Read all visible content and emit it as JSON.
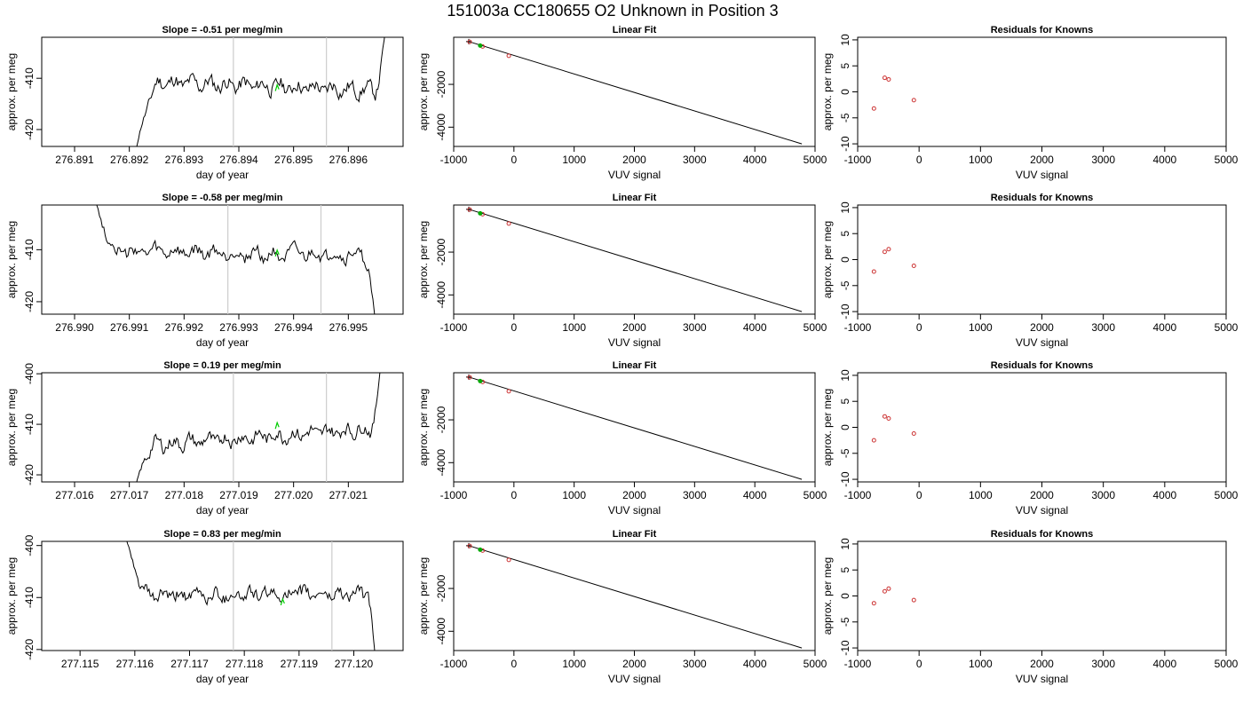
{
  "figure": {
    "title": "151003a     CC180655   O2 Unknown in Position  3"
  },
  "chart_data": [
    {
      "row": 0,
      "type": "line",
      "title": "Slope =  -0.51  per meg/min",
      "xlabel": "day of year",
      "ylabel": "approx. per meg",
      "xlim": [
        276.8904,
        276.897
      ],
      "ylim": [
        -423.3,
        -402.0
      ],
      "xticks": [
        276.891,
        276.892,
        276.893,
        276.894,
        276.895,
        276.896
      ],
      "yticks": [
        -410,
        -420
      ],
      "vlines": [
        276.8939,
        276.8956
      ],
      "trace": {
        "t0": 276.8921,
        "t1": 276.8967,
        "base": -411.5,
        "drift": -0.9,
        "noise": 2.2,
        "seed": 11,
        "start": {
          "len": 0.1,
          "from": -425
        },
        "end": {
          "len": 0.045,
          "to": -398
        }
      },
      "highlight": {
        "x": 276.8947,
        "y": -411.8
      }
    },
    {
      "row": 1,
      "type": "line",
      "title": "Slope =  -0.58  per meg/min",
      "xlabel": "day of year",
      "ylabel": "approx. per meg",
      "xlim": [
        276.9894,
        276.996
      ],
      "ylim": [
        -422.4,
        -401.4
      ],
      "xticks": [
        276.99,
        276.991,
        276.992,
        276.993,
        276.994,
        276.995
      ],
      "yticks": [
        -410,
        -420
      ],
      "vlines": [
        276.9928,
        276.9945
      ],
      "trace": {
        "t0": 276.9903,
        "t1": 276.9955,
        "base": -410.8,
        "drift": -0.4,
        "noise": 2.1,
        "seed": 27,
        "start": {
          "len": 0.1,
          "from": -398
        },
        "end": {
          "len": 0.04,
          "to": -425
        }
      },
      "highlight": {
        "x": 276.9937,
        "y": -410.6
      }
    },
    {
      "row": 2,
      "type": "line",
      "title": "Slope =  0.19  per meg/min",
      "xlabel": "day of year",
      "ylabel": "approx. per meg",
      "xlim": [
        277.0154,
        277.022
      ],
      "ylim": [
        -421.4,
        -399.8
      ],
      "xticks": [
        277.016,
        277.017,
        277.018,
        277.019,
        277.02,
        277.021
      ],
      "yticks": [
        -400,
        -410,
        -420
      ],
      "vlines": [
        277.0189,
        277.0206
      ],
      "trace": {
        "t0": 277.0171,
        "t1": 277.0216,
        "base": -412.5,
        "drift": 1.8,
        "noise": 2.1,
        "seed": 43,
        "start": {
          "len": 0.08,
          "from": -423
        },
        "end": {
          "len": 0.04,
          "to": -397
        }
      },
      "highlight": {
        "x": 277.0197,
        "y": -410.2
      }
    },
    {
      "row": 3,
      "type": "line",
      "title": "Slope =  0.83  per meg/min",
      "xlabel": "day of year",
      "ylabel": "approx. per meg",
      "xlim": [
        277.1143,
        277.1209
      ],
      "ylim": [
        -420.2,
        -399.2
      ],
      "xticks": [
        277.115,
        277.116,
        277.117,
        277.118,
        277.119,
        277.12
      ],
      "yticks": [
        -400,
        -410,
        -420
      ],
      "vlines": [
        277.1178,
        277.1196
      ],
      "trace": {
        "t0": 277.1158,
        "t1": 277.1204,
        "base": -409.5,
        "drift": 0.3,
        "noise": 2.0,
        "seed": 61,
        "start": {
          "len": 0.1,
          "from": -397
        },
        "end": {
          "len": 0.035,
          "to": -423
        }
      },
      "highlight": {
        "x": 277.1187,
        "y": -410.8
      }
    },
    {
      "type": "line+scatter",
      "title": "Linear Fit",
      "xlabel": "VUV signal",
      "ylabel": "approx. per meg",
      "xlim": [
        -1000,
        5000
      ],
      "ylim": [
        -4900,
        200
      ],
      "xticks": [
        -1000,
        0,
        1000,
        2000,
        3000,
        4000,
        5000
      ],
      "yticks": [
        -2000,
        -4000
      ],
      "line": {
        "x": [
          -750,
          4780
        ],
        "y": [
          0,
          -4780
        ]
      },
      "points_known": [
        {
          "x": -735,
          "y": -15
        },
        {
          "x": -520,
          "y": -230
        },
        {
          "x": -85,
          "y": -665
        }
      ],
      "points_unknown": [
        {
          "x": -560,
          "y": -190
        }
      ],
      "marker": {
        "x": -750,
        "y": 0
      }
    },
    {
      "type": "scatter",
      "title": "Residuals for Knowns",
      "xlabel": "VUV signal",
      "ylabel": "approx. per meg",
      "xlim": [
        -1000,
        5000
      ],
      "ylim": [
        -10.5,
        10.5
      ],
      "xticks": [
        -1000,
        0,
        1000,
        2000,
        3000,
        4000,
        5000
      ],
      "yticks": [
        10,
        5,
        0,
        -5,
        -10
      ],
      "rows": [
        {
          "x": [
            -735,
            -560,
            -495,
            -85
          ],
          "y": [
            -3.2,
            2.7,
            2.4,
            -1.6
          ]
        },
        {
          "x": [
            -735,
            -560,
            -495,
            -85
          ],
          "y": [
            -2.3,
            1.5,
            2.0,
            -1.2
          ]
        },
        {
          "x": [
            -735,
            -560,
            -495,
            -85
          ],
          "y": [
            -2.5,
            2.1,
            1.7,
            -1.2
          ]
        },
        {
          "x": [
            -735,
            -560,
            -495,
            -85
          ],
          "y": [
            -1.4,
            0.9,
            1.4,
            -0.8
          ]
        }
      ]
    }
  ],
  "colors": {
    "trace": "#000000",
    "vline": "#cccccc",
    "highlight": "#00cc00",
    "known_point": "#cc3333",
    "unknown_point": "#00aa00"
  }
}
